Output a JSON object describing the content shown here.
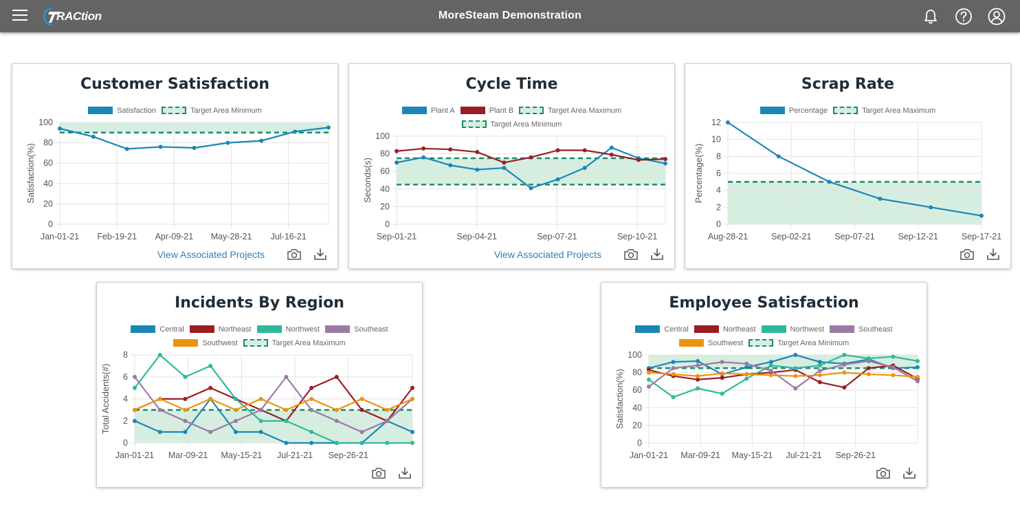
{
  "header": {
    "app_name": "MoreSteam Demonstration",
    "logo_text": "RACtion",
    "icons": [
      "menu-icon",
      "bell-icon",
      "help-icon",
      "user-icon"
    ]
  },
  "colors": {
    "central": "#1a87b9",
    "northeast": "#9b1d24",
    "northwest": "#2fb99b",
    "southeast": "#9b7aa6",
    "southwest": "#ee930f",
    "target": "#1a8a6b",
    "target_fill": "#d6eee0"
  },
  "footer": {
    "view_projects": "View Associated Projects",
    "icons": [
      "camera-icon",
      "download-icon"
    ]
  },
  "chart_data": [
    {
      "id": "customer",
      "type": "line",
      "title": "Customer Satisfaction",
      "ylabel": "Satisfaction(%)",
      "xlabel": "",
      "ylim": [
        0,
        100
      ],
      "yticks": [
        0,
        20,
        40,
        60,
        80,
        100
      ],
      "xtick_labels": [
        "Jan-01-21",
        "Feb-19-21",
        "Apr-09-21",
        "May-28-21",
        "Jul-16-21"
      ],
      "series": [
        {
          "name": "Satisfaction",
          "color": "#1a87b9",
          "values": [
            94,
            86,
            74,
            76,
            75,
            80,
            82,
            91,
            95
          ]
        }
      ],
      "target": {
        "name": "Target Area Minimum",
        "type": "min",
        "value": 90,
        "upper": 100
      },
      "legend": [
        "Satisfaction",
        "Target Area Minimum"
      ],
      "show_link": true
    },
    {
      "id": "cycle",
      "type": "line",
      "title": "Cycle Time",
      "ylabel": "Seconds(s)",
      "xlabel": "",
      "ylim": [
        0,
        100
      ],
      "yticks": [
        0,
        20,
        40,
        60,
        80,
        100
      ],
      "xtick_labels": [
        "Sep-01-21",
        "Sep-04-21",
        "Sep-07-21",
        "Sep-10-21"
      ],
      "series": [
        {
          "name": "Plant A",
          "color": "#1a87b9",
          "values": [
            70,
            76,
            67,
            62,
            64,
            41,
            51,
            64,
            87,
            75,
            69
          ]
        },
        {
          "name": "Plant B",
          "color": "#9b1d24",
          "values": [
            83,
            86,
            85,
            82,
            70,
            76,
            84,
            84,
            79,
            73,
            74
          ]
        }
      ],
      "targets": [
        {
          "name": "Target Area Maximum",
          "value": 75
        },
        {
          "name": "Target Area Minimum",
          "value": 45
        }
      ],
      "legend": [
        "Plant A",
        "Plant B",
        "Target Area Maximum",
        "Target Area Minimum"
      ],
      "show_link": true
    },
    {
      "id": "scrap",
      "type": "line",
      "title": "Scrap Rate",
      "ylabel": "Percentage(%)",
      "xlabel": "",
      "ylim": [
        0,
        12
      ],
      "yticks": [
        0,
        2,
        4,
        6,
        8,
        10,
        12
      ],
      "xtick_labels": [
        "Aug-28-21",
        "Sep-02-21",
        "Sep-07-21",
        "Sep-12-21",
        "Sep-17-21"
      ],
      "series": [
        {
          "name": "Percentage",
          "color": "#1a87b9",
          "values": [
            12,
            8,
            5,
            3,
            2,
            1
          ]
        }
      ],
      "target": {
        "name": "Target Area Maximum",
        "type": "max",
        "value": 5
      },
      "legend": [
        "Percentage",
        "Target Area Maximum"
      ],
      "show_link": false
    },
    {
      "id": "incidents",
      "type": "line",
      "title": "Incidents By Region",
      "ylabel": "Total Accidents(#)",
      "xlabel": "",
      "ylim": [
        0,
        8
      ],
      "yticks": [
        0,
        2,
        4,
        6,
        8
      ],
      "xtick_labels": [
        "Jan-01-21",
        "Mar-09-21",
        "May-15-21",
        "Jul-21-21",
        "Sep-26-21"
      ],
      "series": [
        {
          "name": "Central",
          "color": "#1a87b9",
          "values": [
            2,
            1,
            1,
            4,
            1,
            1,
            0,
            0,
            0,
            0,
            2,
            1
          ]
        },
        {
          "name": "Northeast",
          "color": "#9b1d24",
          "values": [
            3,
            4,
            4,
            5,
            4,
            3,
            2,
            5,
            6,
            3,
            2,
            5
          ]
        },
        {
          "name": "Northwest",
          "color": "#2fb99b",
          "values": [
            5,
            8,
            6,
            7,
            4,
            2,
            2,
            1,
            0,
            0,
            0,
            0
          ]
        },
        {
          "name": "Southeast",
          "color": "#9b7aa6",
          "values": [
            6,
            3,
            2,
            1,
            2,
            3,
            6,
            3,
            2,
            1,
            2,
            4
          ]
        },
        {
          "name": "Southwest",
          "color": "#ee930f",
          "values": [
            3,
            4,
            3,
            4,
            3,
            4,
            3,
            4,
            3,
            4,
            3,
            4
          ]
        }
      ],
      "target": {
        "name": "Target Area Maximum",
        "type": "max",
        "value": 3
      },
      "legend": [
        "Central",
        "Northeast",
        "Northwest",
        "Southeast",
        "Southwest",
        "Target Area Maximum"
      ],
      "show_link": false
    },
    {
      "id": "employee",
      "type": "line",
      "title": "Employee Satisfaction",
      "ylabel": "Satisfaction(%)",
      "xlabel": "",
      "ylim": [
        0,
        100
      ],
      "yticks": [
        0,
        20,
        40,
        60,
        80,
        100
      ],
      "xtick_labels": [
        "Jan-01-21",
        "Mar-09-21",
        "May-15-21",
        "Jul-21-21",
        "Sep-26-21"
      ],
      "series": [
        {
          "name": "Central",
          "color": "#1a87b9",
          "values": [
            85,
            92,
            93,
            78,
            86,
            92,
            100,
            92,
            90,
            95,
            85,
            86
          ]
        },
        {
          "name": "Northeast",
          "color": "#9b1d24",
          "values": [
            83,
            76,
            72,
            74,
            78,
            80,
            83,
            69,
            63,
            85,
            88,
            73
          ]
        },
        {
          "name": "Northwest",
          "color": "#2fb99b",
          "values": [
            72,
            52,
            62,
            56,
            73,
            88,
            85,
            88,
            100,
            96,
            98,
            93
          ]
        },
        {
          "name": "Southeast",
          "color": "#9b7aa6",
          "values": [
            64,
            85,
            88,
            92,
            90,
            82,
            62,
            82,
            89,
            93,
            86,
            70
          ]
        },
        {
          "name": "Southwest",
          "color": "#ee930f",
          "values": [
            80,
            78,
            76,
            79,
            78,
            77,
            76,
            77,
            80,
            78,
            77,
            75
          ]
        }
      ],
      "target": {
        "name": "Target Area Minimum",
        "type": "min",
        "value": 85,
        "upper": 100
      },
      "legend": [
        "Central",
        "Northeast",
        "Northwest",
        "Southeast",
        "Southwest",
        "Target Area Minimum"
      ],
      "show_link": false
    }
  ]
}
